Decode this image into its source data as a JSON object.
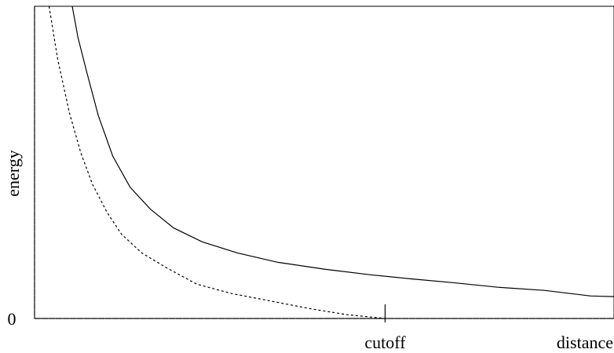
{
  "chart_data": {
    "type": "line",
    "xlabel": "distance",
    "ylabel": "energy",
    "x_tick_labels": {
      "origin": "0",
      "cutoff": "cutoff"
    },
    "xlim": [
      0,
      1
    ],
    "ylim": [
      0,
      1
    ],
    "cutoff_x": 0.605,
    "series": [
      {
        "style": "solid",
        "x": [
          0.065,
          0.075,
          0.09,
          0.11,
          0.135,
          0.165,
          0.2,
          0.24,
          0.29,
          0.35,
          0.42,
          0.5,
          0.58,
          0.65,
          0.72,
          0.8,
          0.88,
          0.96,
          1.0
        ],
        "y": [
          1.0,
          0.9,
          0.79,
          0.65,
          0.52,
          0.42,
          0.35,
          0.29,
          0.245,
          0.21,
          0.18,
          0.158,
          0.14,
          0.127,
          0.115,
          0.1,
          0.09,
          0.072,
          0.07
        ]
      },
      {
        "style": "dotted",
        "x": [
          0.025,
          0.04,
          0.06,
          0.08,
          0.1,
          0.125,
          0.15,
          0.185,
          0.23,
          0.28,
          0.34,
          0.41,
          0.48,
          0.54,
          0.605
        ],
        "y": [
          1.0,
          0.83,
          0.66,
          0.53,
          0.43,
          0.34,
          0.27,
          0.21,
          0.16,
          0.11,
          0.08,
          0.055,
          0.03,
          0.012,
          0.0
        ]
      }
    ]
  }
}
